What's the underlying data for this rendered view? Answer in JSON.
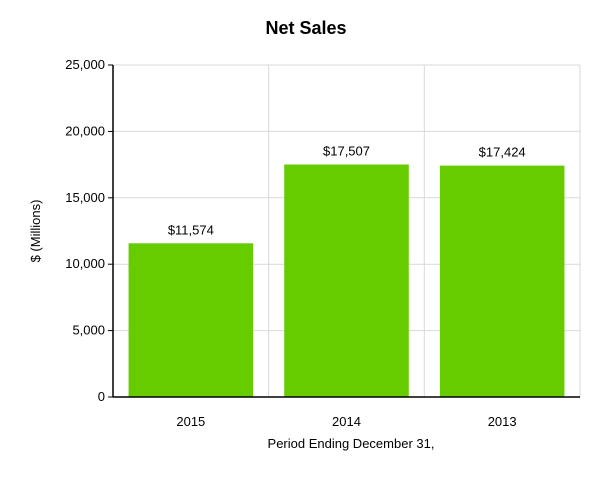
{
  "chart_data": {
    "type": "bar",
    "title": "Net Sales",
    "xlabel": "Period Ending December 31,",
    "ylabel": "$ (Millions)",
    "categories": [
      "2015",
      "2014",
      "2013"
    ],
    "values": [
      11574,
      17507,
      17424
    ],
    "data_labels": [
      "$11,574",
      "$17,507",
      "$17,424"
    ],
    "ylim": [
      0,
      25000
    ],
    "yticks": [
      0,
      5000,
      10000,
      15000,
      20000,
      25000
    ],
    "ytick_labels": [
      "0",
      "5,000",
      "10,000",
      "15,000",
      "20,000",
      "25,000"
    ],
    "bar_color": "#66cc00",
    "grid": true,
    "legend": "none"
  }
}
